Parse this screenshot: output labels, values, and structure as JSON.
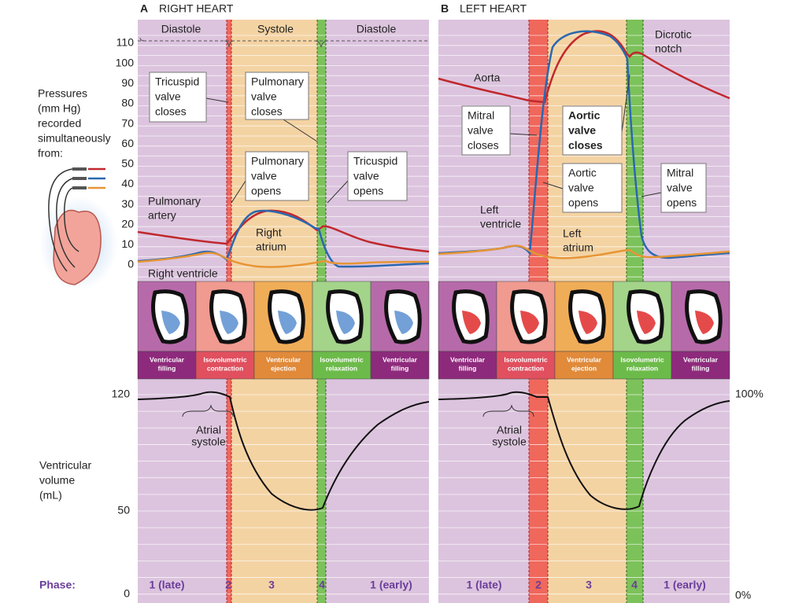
{
  "left_labels": {
    "pressure": [
      "Pressures",
      "(mm Hg)",
      "recorded",
      "simultaneously",
      "from:"
    ],
    "volume": [
      "Ventricular",
      "volume",
      "(mL)"
    ],
    "phase": "Phase:"
  },
  "pressure_ticks": [
    110,
    100,
    90,
    80,
    70,
    60,
    50,
    40,
    30,
    20,
    10,
    0
  ],
  "volume_ticks": [
    120,
    50,
    0
  ],
  "percent_ticks": [
    "100%",
    "0%"
  ],
  "panels": [
    {
      "letter": "A",
      "title": "RIGHT HEART",
      "periods": [
        "Diastole",
        "Systole",
        "Diastole"
      ],
      "callouts": [
        {
          "lines": [
            "Tricuspid",
            "valve",
            "closes"
          ]
        },
        {
          "lines": [
            "Pulmonary",
            "valve",
            "closes"
          ]
        },
        {
          "lines": [
            "Pulmonary",
            "valve",
            "opens"
          ]
        },
        {
          "lines": [
            "Tricuspid",
            "valve",
            "opens"
          ]
        }
      ],
      "labels": [
        {
          "lines": [
            "Pulmonary",
            "artery"
          ]
        },
        {
          "lines": [
            "Right",
            "atrium"
          ]
        },
        {
          "lines": [
            "Right ventricle"
          ]
        }
      ],
      "phases": [
        {
          "lines": [
            "Ventricular",
            "filling"
          ]
        },
        {
          "lines": [
            "Isovolumetric",
            "contraction"
          ]
        },
        {
          "lines": [
            "Ventricular",
            "ejection"
          ]
        },
        {
          "lines": [
            "Isovolumetric",
            "relaxation"
          ]
        },
        {
          "lines": [
            "Ventricular",
            "filling"
          ]
        }
      ],
      "atrial_systole": [
        "Atrial",
        "systole"
      ],
      "phase_numbers": [
        "1 (late)",
        "2",
        "3",
        "4",
        "1 (early)"
      ]
    },
    {
      "letter": "B",
      "title": "LEFT HEART",
      "periods": [],
      "callouts": [
        {
          "lines": [
            "Mitral",
            "valve",
            "closes"
          ]
        },
        {
          "lines": [
            "Aortic",
            "valve",
            "closes"
          ],
          "bold": true
        },
        {
          "lines": [
            "Aortic",
            "valve",
            "opens"
          ]
        },
        {
          "lines": [
            "Mitral",
            "valve",
            "opens"
          ]
        }
      ],
      "labels": [
        {
          "lines": [
            "Aorta"
          ]
        },
        {
          "lines": [
            "Dicrotic",
            "notch"
          ]
        },
        {
          "lines": [
            "Left",
            "ventricle"
          ]
        },
        {
          "lines": [
            "Left",
            "atrium"
          ]
        }
      ],
      "phases": [
        {
          "lines": [
            "Ventricular",
            "filling"
          ]
        },
        {
          "lines": [
            "Isovolumetric",
            "contraction"
          ]
        },
        {
          "lines": [
            "Ventricular",
            "ejection"
          ]
        },
        {
          "lines": [
            "Isovolumetric",
            "relaxation"
          ]
        },
        {
          "lines": [
            "Ventricular",
            "filling"
          ]
        }
      ],
      "atrial_systole": [
        "Atrial",
        "systole"
      ],
      "phase_numbers": [
        "1 (late)",
        "2",
        "3",
        "4",
        "1 (early)"
      ]
    }
  ]
}
